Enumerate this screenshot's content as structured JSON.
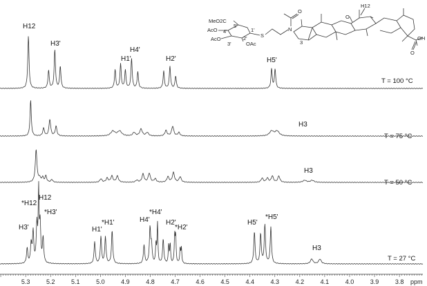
{
  "chart_data": {
    "type": "line",
    "subtype": "stacked NMR spectra",
    "xlabel": "ppm",
    "xlim": [
      5.403,
      3.706
    ],
    "x_reversed": true,
    "xticks": [
      "5.3",
      "5.2",
      "5.1",
      "5.0",
      "4.9",
      "4.8",
      "4.7",
      "4.6",
      "4.5",
      "4.4",
      "4.3",
      "4.2",
      "4.1",
      "4.0",
      "3.9",
      "3.8"
    ],
    "minor_tick_step": 0.01,
    "grid": false,
    "line_color": "#333333",
    "intensity_units": "relative",
    "series": [
      {
        "name": "T = 100 °C",
        "peaks": [
          [
            5.289,
            76,
            0.003
          ],
          [
            5.208,
            26,
            0.003
          ],
          [
            5.183,
            56,
            0.003
          ],
          [
            5.161,
            32,
            0.003
          ],
          [
            4.941,
            27,
            0.003
          ],
          [
            4.919,
            35,
            0.003
          ],
          [
            4.9,
            26,
            0.003
          ],
          [
            4.875,
            43,
            0.003
          ],
          [
            4.85,
            24,
            0.003
          ],
          [
            4.746,
            25,
            0.003
          ],
          [
            4.721,
            32,
            0.003
          ],
          [
            4.698,
            18,
            0.003
          ],
          [
            4.313,
            28,
            0.003
          ],
          [
            4.299,
            28,
            0.003
          ]
        ],
        "annotations": [
          "H12",
          "H3'",
          "H1'",
          "H4'",
          "H2'",
          "H5'"
        ]
      },
      {
        "name": "T = 75 °C",
        "peaks": [
          [
            5.28,
            52,
            0.003
          ],
          [
            5.228,
            11,
            0.004
          ],
          [
            5.203,
            24,
            0.004
          ],
          [
            5.178,
            14,
            0.004
          ],
          [
            4.95,
            7,
            0.01
          ],
          [
            4.923,
            7,
            0.01
          ],
          [
            4.865,
            5,
            0.006
          ],
          [
            4.837,
            10,
            0.006
          ],
          [
            4.812,
            5,
            0.006
          ],
          [
            4.737,
            8,
            0.005
          ],
          [
            4.71,
            14,
            0.005
          ],
          [
            4.685,
            5,
            0.005
          ],
          [
            4.313,
            7,
            0.01
          ],
          [
            4.291,
            7,
            0.01
          ]
        ],
        "annotations": [
          "H3"
        ]
      },
      {
        "name": "T = 50 °C",
        "peaks": [
          [
            5.258,
            47,
            0.004
          ],
          [
            5.244,
            6,
            0.004
          ],
          [
            5.232,
            7,
            0.004
          ],
          [
            5.219,
            9,
            0.004
          ],
          [
            5.195,
            4,
            0.004
          ],
          [
            4.998,
            5,
            0.005
          ],
          [
            4.973,
            6,
            0.005
          ],
          [
            4.954,
            9,
            0.005
          ],
          [
            4.932,
            9,
            0.005
          ],
          [
            4.854,
            3,
            0.005
          ],
          [
            4.829,
            12,
            0.005
          ],
          [
            4.804,
            13,
            0.005
          ],
          [
            4.78,
            5,
            0.005
          ],
          [
            4.729,
            8,
            0.005
          ],
          [
            4.707,
            14,
            0.005
          ],
          [
            4.68,
            8,
            0.005
          ],
          [
            4.351,
            6,
            0.005
          ],
          [
            4.33,
            6,
            0.005
          ],
          [
            4.31,
            9,
            0.005
          ],
          [
            4.284,
            9,
            0.005
          ],
          [
            4.18,
            3,
            0.008
          ],
          [
            4.15,
            3,
            0.008
          ]
        ],
        "annotations": [
          "H3"
        ]
      },
      {
        "name": "T = 27 °C",
        "peaks": [
          [
            5.294,
            22,
            0.003
          ],
          [
            5.278,
            28,
            0.003
          ],
          [
            5.27,
            45,
            0.003
          ],
          [
            5.255,
            55,
            0.003
          ],
          [
            5.248,
            100,
            0.002
          ],
          [
            5.242,
            55,
            0.003
          ],
          [
            5.23,
            36,
            0.003
          ],
          [
            5.023,
            32,
            0.003
          ],
          [
            4.998,
            39,
            0.003
          ],
          [
            4.98,
            39,
            0.003
          ],
          [
            4.953,
            48,
            0.003
          ],
          [
            4.825,
            27,
            0.003
          ],
          [
            4.801,
            50,
            0.003
          ],
          [
            4.795,
            25,
            0.003
          ],
          [
            4.777,
            28,
            0.002
          ],
          [
            4.771,
            58,
            0.002
          ],
          [
            4.748,
            35,
            0.003
          ],
          [
            4.726,
            27,
            0.002
          ],
          [
            4.72,
            28,
            0.002
          ],
          [
            4.702,
            40,
            0.002
          ],
          [
            4.698,
            38,
            0.002
          ],
          [
            4.68,
            22,
            0.002
          ],
          [
            4.675,
            22,
            0.002
          ],
          [
            4.382,
            46,
            0.003
          ],
          [
            4.357,
            43,
            0.003
          ],
          [
            4.34,
            56,
            0.003
          ],
          [
            4.316,
            53,
            0.003
          ],
          [
            4.152,
            7,
            0.006
          ],
          [
            4.119,
            7,
            0.006
          ]
        ],
        "annotations": [
          "H3'",
          "*H12",
          "H12",
          "*H3'",
          "H1'",
          "*H1'",
          "H4'",
          "*H4'",
          "H2'",
          "*H2'",
          "H5'",
          "*H5'",
          "H3"
        ]
      }
    ]
  },
  "labels": {
    "s100": {
      "h12": "H12",
      "h3p": "H3'",
      "h1p": "H1'",
      "h4p": "H4'",
      "h2p": "H2'",
      "h5p": "H5'",
      "temp": "T = 100 °C"
    },
    "s75": {
      "h3": "H3",
      "temp": "T = 75 °C"
    },
    "s50": {
      "h3": "H3",
      "temp": "T = 50 °C"
    },
    "s27": {
      "h3p": "H3'",
      "sh12": "*H12",
      "h12": "H12",
      "sh3p": "*H3'",
      "h1p": "H1'",
      "sh1p": "*H1'",
      "h4p": "H4'",
      "sh4p": "*H4'",
      "h2p": "H2'",
      "sh2p": "*H2'",
      "h5p": "H5'",
      "sh5p": "*H5'",
      "h3": "H3",
      "temp": "T = 27 °C"
    }
  },
  "structure": {
    "meo2c": "MeO2C",
    "c5": "5'",
    "aco4": "AcO",
    "c4": "4'",
    "aco3": "AcO",
    "c3": "3'",
    "c2": "2'",
    "c1": "1'",
    "oac": "OAc",
    "s": "S",
    "n": "N",
    "o_acetyl": "O",
    "c3_aglycone": "3",
    "o_keto": "O",
    "h12": "H12",
    "oh": "OH",
    "o_acid": "O"
  }
}
